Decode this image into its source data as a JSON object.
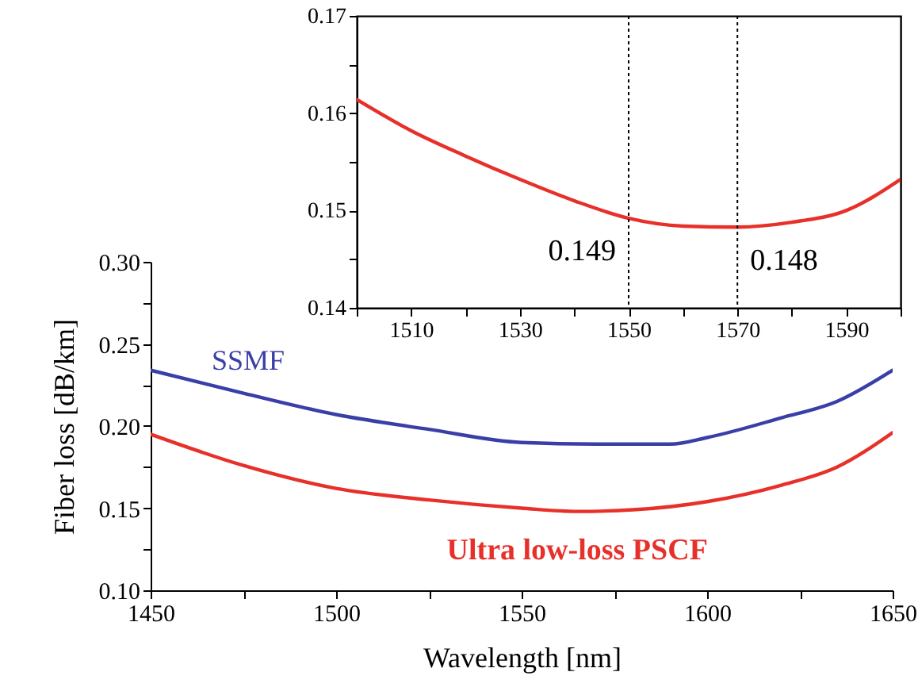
{
  "chart_data": [
    {
      "type": "line",
      "xlabel": "Wavelength [nm]",
      "ylabel": "Fiber loss [dB/km]",
      "xlim": [
        1450,
        1650
      ],
      "ylim": [
        0.1,
        0.3
      ],
      "xticks": [
        1450,
        {
          "value": 1475,
          "label": null
        },
        1500,
        {
          "value": 1525,
          "label": null
        },
        1550,
        {
          "value": 1575,
          "label": null
        },
        1600,
        {
          "value": 1625,
          "label": null
        },
        1650
      ],
      "yticks": [
        {
          "value": 0.1,
          "label": "0.10"
        },
        {
          "value": 0.125,
          "label": null
        },
        0.15,
        {
          "value": 0.175,
          "label": null
        },
        {
          "value": 0.2,
          "label": "0.20"
        },
        {
          "value": 0.225,
          "label": null
        },
        0.25,
        {
          "value": 0.275,
          "label": null
        },
        {
          "value": 0.3,
          "label": "0.30"
        }
      ],
      "grid": false,
      "legend": false,
      "marker": "none",
      "line_style": "solid",
      "series": [
        {
          "name": "SSMF",
          "color": "#3a3fa8",
          "x": [
            1450,
            1475,
            1500,
            1525,
            1550,
            1570,
            1590,
            1600,
            1620,
            1635,
            1650
          ],
          "values": [
            0.234,
            0.22,
            0.207,
            0.198,
            0.19,
            0.189,
            0.189,
            0.193,
            0.205,
            0.215,
            0.234
          ]
        },
        {
          "name": "Ultra low-loss PSCF",
          "color": "#e8302a",
          "x": [
            1450,
            1475,
            1500,
            1525,
            1550,
            1565,
            1580,
            1600,
            1620,
            1635,
            1650
          ],
          "values": [
            0.195,
            0.176,
            0.162,
            0.155,
            0.15,
            0.148,
            0.149,
            0.154,
            0.164,
            0.175,
            0.196
          ]
        }
      ]
    },
    {
      "type": "line",
      "xlim": [
        1500,
        1600
      ],
      "ylim": [
        0.14,
        0.17
      ],
      "xticks": [
        {
          "value": 1500,
          "label": null
        },
        1510,
        {
          "value": 1520,
          "label": null
        },
        1530,
        {
          "value": 1540,
          "label": null
        },
        1550,
        {
          "value": 1560,
          "label": null
        },
        1570,
        {
          "value": 1580,
          "label": null
        },
        1590,
        {
          "value": 1600,
          "label": null
        }
      ],
      "yticks": [
        0.14,
        {
          "value": 0.145,
          "label": null
        },
        0.15,
        {
          "value": 0.155,
          "label": null
        },
        0.16,
        {
          "value": 0.165,
          "label": null
        },
        0.17
      ],
      "grid": false,
      "legend": false,
      "marker": "none",
      "line_style": "solid",
      "series": [
        {
          "color": "#e8302a",
          "x": [
            1500,
            1510,
            1520,
            1530,
            1540,
            1550,
            1560,
            1570,
            1580,
            1590,
            1600
          ],
          "values": [
            0.1614,
            0.1582,
            0.1556,
            0.1532,
            0.151,
            0.1492,
            0.1484,
            0.1483,
            0.1488,
            0.15,
            0.1532
          ]
        }
      ],
      "ref_lines": [
        {
          "axis": "x",
          "value": 1550,
          "line_style": "dotted",
          "color": "#000000"
        },
        {
          "axis": "x",
          "value": 1570,
          "line_style": "dotted",
          "color": "#000000"
        }
      ],
      "annotations": [
        {
          "text": "0.149",
          "x": 1550,
          "y": 0.149
        },
        {
          "text": "0.148",
          "x": 1570,
          "y": 0.148
        }
      ]
    }
  ]
}
